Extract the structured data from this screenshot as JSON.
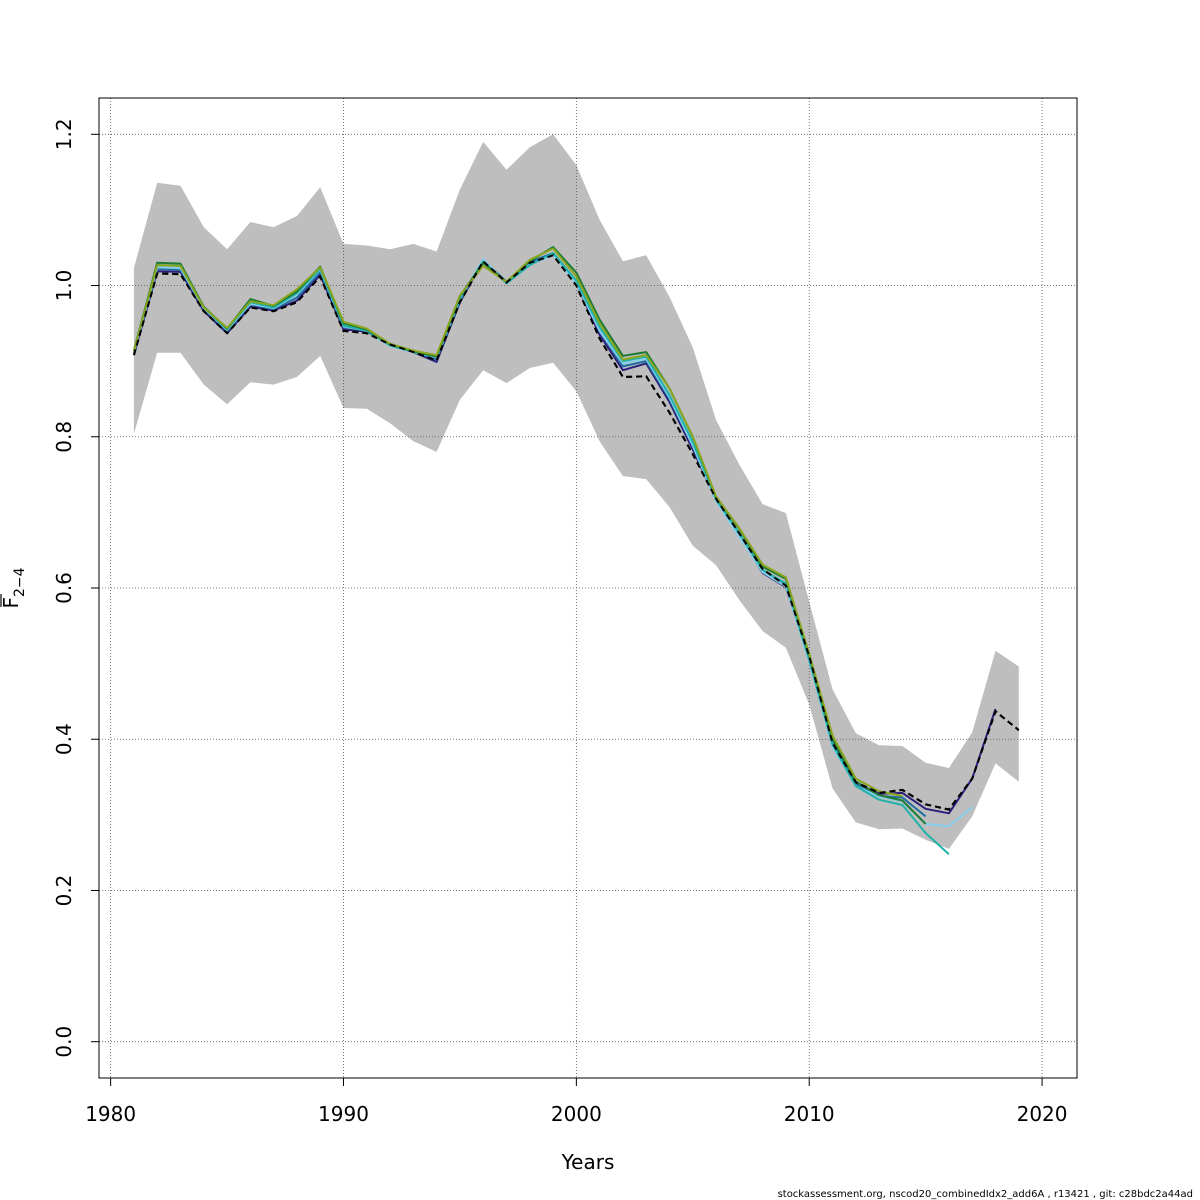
{
  "chart_data": {
    "type": "line",
    "xlabel": "Years",
    "ylabel_main": "F",
    "ylabel_sub": "2−4",
    "xlim": [
      1979.5,
      2021.5
    ],
    "ylim": [
      -0.048,
      1.248
    ],
    "xticks": [
      1980,
      1990,
      2000,
      2010,
      2020
    ],
    "yticks": [
      0.0,
      0.2,
      0.4,
      0.6,
      0.8,
      1.0,
      1.2
    ],
    "ytick_labels": [
      "0.0",
      "0.2",
      "0.4",
      "0.6",
      "0.8",
      "1.0",
      "1.2"
    ],
    "grid": true,
    "footer": "stockassessment.org, nscod20_combinedIdx2_add6A , r13421 , git: c28bdc2a44ad",
    "confidence_band": {
      "color": "#bebebe",
      "x": [
        1981,
        1982,
        1983,
        1984,
        1985,
        1986,
        1987,
        1988,
        1989,
        1990,
        1991,
        1992,
        1993,
        1994,
        1995,
        1996,
        1997,
        1998,
        1999,
        2000,
        2001,
        2002,
        2003,
        2004,
        2005,
        2006,
        2007,
        2008,
        2009,
        2010,
        2011,
        2012,
        2013,
        2014,
        2015,
        2016,
        2017,
        2018,
        2019
      ],
      "upper": [
        1.023,
        1.136,
        1.132,
        1.077,
        1.048,
        1.084,
        1.077,
        1.092,
        1.13,
        1.055,
        1.053,
        1.048,
        1.055,
        1.045,
        1.127,
        1.19,
        1.153,
        1.183,
        1.2,
        1.159,
        1.087,
        1.032,
        1.04,
        0.985,
        0.918,
        0.822,
        0.763,
        0.711,
        0.699,
        0.582,
        0.466,
        0.408,
        0.392,
        0.391,
        0.369,
        0.362,
        0.409,
        0.517,
        0.496
      ],
      "lower": [
        0.804,
        0.911,
        0.911,
        0.869,
        0.843,
        0.872,
        0.869,
        0.879,
        0.907,
        0.838,
        0.837,
        0.818,
        0.794,
        0.78,
        0.849,
        0.888,
        0.871,
        0.891,
        0.898,
        0.86,
        0.794,
        0.748,
        0.744,
        0.707,
        0.656,
        0.63,
        0.584,
        0.543,
        0.521,
        0.446,
        0.335,
        0.29,
        0.281,
        0.282,
        0.267,
        0.255,
        0.298,
        0.368,
        0.344
      ]
    },
    "series": [
      {
        "color": "#000000",
        "dashed": true,
        "x": [
          1981,
          1982,
          1983,
          1984,
          1985,
          1986,
          1987,
          1988,
          1989,
          1990,
          1991,
          1992,
          1993,
          1994,
          1995,
          1996,
          1997,
          1998,
          1999,
          2000,
          2001,
          2002,
          2003,
          2004,
          2005,
          2006,
          2007,
          2008,
          2009,
          2010,
          2011,
          2012,
          2013,
          2014,
          2015,
          2016,
          2017,
          2018,
          2019
        ],
        "values": [
          0.908,
          1.016,
          1.015,
          0.966,
          0.937,
          0.971,
          0.966,
          0.978,
          1.012,
          0.94,
          0.937,
          0.922,
          0.912,
          0.901,
          0.978,
          1.032,
          1.004,
          1.03,
          1.04,
          1.0,
          0.93,
          0.879,
          0.88,
          0.832,
          0.777,
          0.718,
          0.672,
          0.625,
          0.603,
          0.51,
          0.395,
          0.343,
          0.329,
          0.333,
          0.314,
          0.307,
          0.348,
          0.437,
          0.412
        ]
      },
      {
        "color": "#2a1f7a",
        "dashed": false,
        "x": [
          1981,
          1982,
          1983,
          1984,
          1985,
          1986,
          1987,
          1988,
          1989,
          1990,
          1991,
          1992,
          1993,
          1994,
          1995,
          1996,
          1997,
          1998,
          1999,
          2000,
          2001,
          2002,
          2003,
          2004,
          2005,
          2006,
          2007,
          2008,
          2009,
          2010,
          2011,
          2012,
          2013,
          2014,
          2015,
          2016,
          2017,
          2018
        ],
        "values": [
          0.908,
          1.019,
          1.018,
          0.966,
          0.937,
          0.972,
          0.967,
          0.98,
          1.014,
          0.942,
          0.939,
          0.922,
          0.912,
          0.899,
          0.978,
          1.033,
          1.005,
          1.031,
          1.041,
          1.003,
          0.935,
          0.888,
          0.897,
          0.846,
          0.783,
          0.717,
          0.67,
          0.62,
          0.601,
          0.506,
          0.394,
          0.342,
          0.328,
          0.329,
          0.308,
          0.302,
          0.348,
          0.44
        ]
      },
      {
        "color": "#1e6ea0",
        "dashed": false,
        "x": [
          1981,
          1982,
          1983,
          1984,
          1985,
          1986,
          1987,
          1988,
          1989,
          1990,
          1991,
          1992,
          1993,
          1994,
          1995,
          1996,
          1997,
          1998,
          1999,
          2000,
          2001,
          2002,
          2003,
          2004,
          2005,
          2006,
          2007,
          2008,
          2009,
          2010,
          2011,
          2012,
          2013,
          2014,
          2015
        ],
        "values": [
          0.911,
          1.022,
          1.021,
          0.969,
          0.94,
          0.975,
          0.969,
          0.984,
          1.018,
          0.945,
          0.941,
          0.923,
          0.913,
          0.902,
          0.98,
          1.034,
          1.005,
          1.031,
          1.043,
          1.006,
          0.94,
          0.893,
          0.9,
          0.85,
          0.788,
          0.718,
          0.669,
          0.621,
          0.603,
          0.507,
          0.393,
          0.341,
          0.325,
          0.323,
          0.298
        ]
      },
      {
        "color": "#87ceeb",
        "dashed": false,
        "x": [
          1981,
          1982,
          1983,
          1984,
          1985,
          1986,
          1987,
          1988,
          1989,
          1990,
          1991,
          1992,
          1993,
          1994,
          1995,
          1996,
          1997,
          1998,
          1999,
          2000,
          2001,
          2002,
          2003,
          2004,
          2005,
          2006,
          2007,
          2008,
          2009,
          2010,
          2011,
          2012,
          2013,
          2014,
          2015,
          2016,
          2017
        ],
        "values": [
          0.912,
          1.024,
          1.023,
          0.97,
          0.941,
          0.976,
          0.97,
          0.988,
          1.021,
          0.946,
          0.94,
          0.92,
          0.912,
          0.905,
          0.982,
          1.035,
          1.003,
          1.028,
          1.04,
          1.003,
          0.94,
          0.897,
          0.903,
          0.852,
          0.788,
          0.715,
          0.667,
          0.621,
          0.602,
          0.503,
          0.39,
          0.338,
          0.324,
          0.318,
          0.288,
          0.285,
          0.31
        ]
      },
      {
        "color": "#20b2aa",
        "dashed": false,
        "x": [
          1981,
          1982,
          1983,
          1984,
          1985,
          1986,
          1987,
          1988,
          1989,
          1990,
          1991,
          1992,
          1993,
          1994,
          1995,
          1996,
          1997,
          1998,
          1999,
          2000,
          2001,
          2002,
          2003,
          2004,
          2005,
          2006,
          2007,
          2008,
          2009,
          2010,
          2011,
          2012,
          2013,
          2014,
          2015,
          2016
        ],
        "values": [
          0.913,
          1.027,
          1.026,
          0.971,
          0.942,
          0.978,
          0.971,
          0.99,
          1.022,
          0.947,
          0.94,
          0.921,
          0.912,
          0.906,
          0.983,
          1.032,
          1.003,
          1.027,
          1.043,
          1.006,
          0.945,
          0.9,
          0.906,
          0.855,
          0.793,
          0.717,
          0.672,
          0.624,
          0.606,
          0.505,
          0.393,
          0.338,
          0.32,
          0.313,
          0.276,
          0.248
        ]
      },
      {
        "color": "#1f7a33",
        "dashed": false,
        "x": [
          1981,
          1982,
          1983,
          1984,
          1985,
          1986,
          1987,
          1988,
          1989,
          1990,
          1991,
          1992,
          1993,
          1994,
          1995,
          1996,
          1997,
          1998,
          1999,
          2000,
          2001,
          2002,
          2003,
          2004,
          2005,
          2006,
          2007,
          2008,
          2009,
          2010,
          2011,
          2012,
          2013,
          2014,
          2015
        ],
        "values": [
          0.914,
          1.03,
          1.029,
          0.972,
          0.943,
          0.982,
          0.973,
          0.992,
          1.025,
          0.95,
          0.942,
          0.922,
          0.913,
          0.906,
          0.986,
          1.03,
          1.005,
          1.032,
          1.051,
          1.017,
          0.955,
          0.907,
          0.912,
          0.864,
          0.8,
          0.72,
          0.678,
          0.628,
          0.612,
          0.511,
          0.4,
          0.344,
          0.326,
          0.319,
          0.288
        ]
      },
      {
        "color": "#8aa61e",
        "dashed": false,
        "x": [
          1981,
          1982,
          1983,
          1984,
          1985,
          1986,
          1987,
          1988,
          1989,
          1990,
          1991,
          1992,
          1993,
          1994,
          1995,
          1996,
          1997,
          1998,
          1999,
          2000,
          2001,
          2002,
          2003,
          2004,
          2005,
          2006,
          2007,
          2008,
          2009,
          2010,
          2011,
          2012,
          2013,
          2014
        ],
        "values": [
          0.913,
          1.027,
          1.026,
          0.971,
          0.944,
          0.979,
          0.974,
          0.995,
          1.024,
          0.952,
          0.943,
          0.923,
          0.914,
          0.908,
          0.987,
          1.026,
          1.005,
          1.034,
          1.049,
          1.012,
          0.95,
          0.902,
          0.908,
          0.864,
          0.8,
          0.721,
          0.679,
          0.631,
          0.614,
          0.513,
          0.405,
          0.348,
          0.331,
          0.325
        ]
      }
    ]
  }
}
